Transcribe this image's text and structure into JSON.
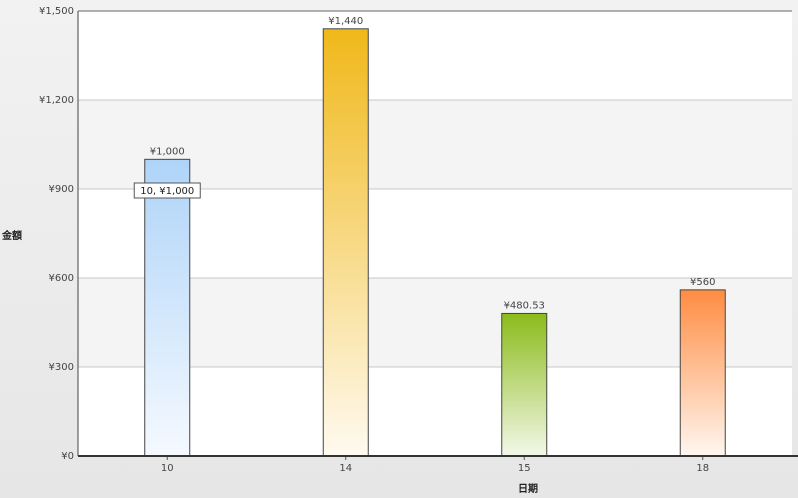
{
  "chart_data": {
    "type": "bar",
    "xlabel": "日期",
    "ylabel": "金額",
    "categories": [
      "10",
      "14",
      "15",
      "18"
    ],
    "values": [
      1000,
      1440,
      480.53,
      560
    ],
    "value_labels": [
      "¥1,000",
      "¥1,440",
      "¥480.53",
      "¥560"
    ],
    "ylim": [
      0,
      1500
    ],
    "yticks": [
      0,
      300,
      600,
      900,
      1200,
      1500
    ],
    "ytick_labels": [
      "¥0",
      "¥300",
      "¥600",
      "¥900",
      "¥1,200",
      "¥1,500"
    ],
    "bar_colors": [
      {
        "top": "#aed4f8",
        "bottom": "#f5f9ff"
      },
      {
        "top": "#f0b81a",
        "bottom": "#fffaf0"
      },
      {
        "top": "#8bbb1a",
        "bottom": "#f3f8e9"
      },
      {
        "top": "#ff8c42",
        "bottom": "#fff6f0"
      }
    ],
    "grid": true,
    "tooltip": {
      "category_index": 0,
      "text": "10, ¥1,000"
    }
  }
}
